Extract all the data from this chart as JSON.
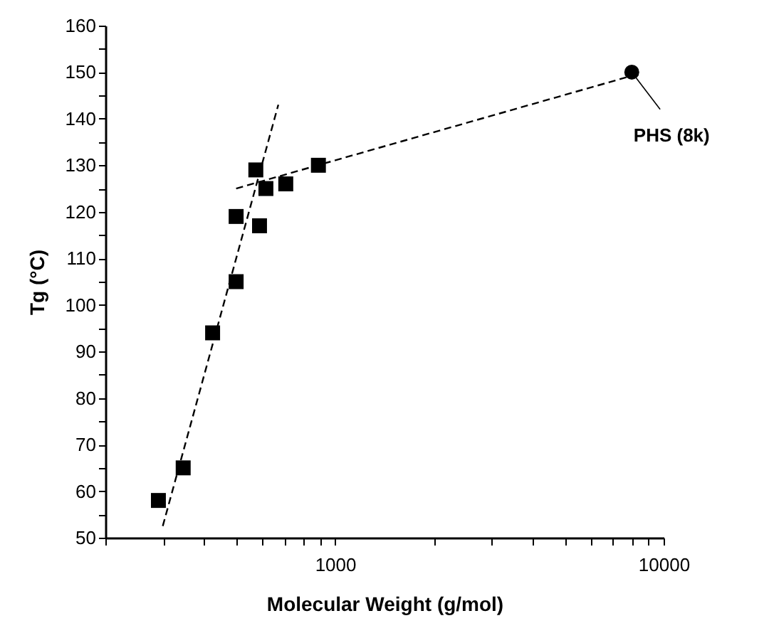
{
  "chart_data": {
    "type": "scatter",
    "xlabel": "Molecular Weight (g/mol)",
    "ylabel": "Tg (°C)",
    "log": "x",
    "xlim": [
      200,
      10000
    ],
    "xticks": [
      {
        "value": 200,
        "label": null
      },
      {
        "value": 300,
        "label": null
      },
      {
        "value": 400,
        "label": null
      },
      {
        "value": 500,
        "label": null
      },
      {
        "value": 600,
        "label": null
      },
      {
        "value": 700,
        "label": null
      },
      {
        "value": 800,
        "label": null
      },
      {
        "value": 900,
        "label": null
      },
      1000,
      {
        "value": 2000,
        "label": null
      },
      {
        "value": 3000,
        "label": null
      },
      {
        "value": 4000,
        "label": null
      },
      {
        "value": 5000,
        "label": null
      },
      {
        "value": 6000,
        "label": null
      },
      {
        "value": 7000,
        "label": null
      },
      {
        "value": 8000,
        "label": null
      },
      {
        "value": 9000,
        "label": null
      },
      10000
    ],
    "ylim": [
      50,
      160
    ],
    "yticks": [
      50,
      {
        "value": 55,
        "label": null
      },
      60,
      {
        "value": 65,
        "label": null
      },
      70,
      {
        "value": 75,
        "label": null
      },
      80,
      {
        "value": 85,
        "label": null
      },
      90,
      {
        "value": 95,
        "label": null
      },
      100,
      {
        "value": 105,
        "label": null
      },
      110,
      {
        "value": 115,
        "label": null
      },
      120,
      {
        "value": 125,
        "label": null
      },
      130,
      {
        "value": 135,
        "label": null
      },
      140,
      {
        "value": 145,
        "label": null
      },
      150,
      {
        "value": 155,
        "label": null
      },
      160
    ],
    "grid": false,
    "series": [
      {
        "type": "scatter",
        "marker": "square",
        "color": "#000000",
        "x": [
          290,
          345,
          424,
          500,
          500,
          574,
          589,
          616,
          708,
          890
        ],
        "values": [
          58,
          65,
          94,
          105,
          119,
          129,
          117,
          125,
          126,
          130
        ]
      },
      {
        "type": "scatter",
        "marker": "circle",
        "color": "#000000",
        "x": [
          8000
        ],
        "values": [
          150
        ]
      },
      {
        "type": "line",
        "line_style": "dashed",
        "color": "#000000",
        "x": [
          299,
          672
        ],
        "values": [
          52.5,
          143
        ]
      },
      {
        "type": "line",
        "line_style": "dashed",
        "color": "#000000",
        "x": [
          500,
          7800
        ],
        "values": [
          125,
          149
        ]
      }
    ],
    "annotations": [
      {
        "text": "PHS (8k)",
        "x": 8000,
        "y": 150
      }
    ]
  }
}
